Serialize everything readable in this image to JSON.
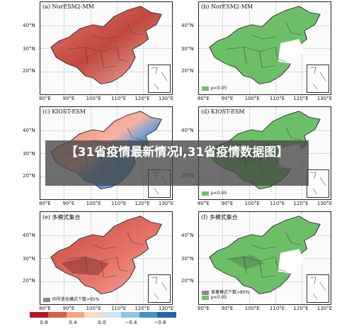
{
  "panels": [
    {
      "title": "(a) NorESM2-MM",
      "type": "correlation"
    },
    {
      "title": "(b) NorESM2-MM",
      "type": "significance",
      "legend": "p<0.05"
    },
    {
      "title": "(c) KIOST-ESM",
      "type": "correlation"
    },
    {
      "title": "(d) KIOST-ESM",
      "type": "significance",
      "legend": "p<0.05"
    },
    {
      "title": "(e) 多模式集合",
      "type": "correlation",
      "legend": "同号变化模式个数>95%"
    },
    {
      "title": "(f) 多模式集合",
      "type": "significance",
      "legend": "显著模式个数>80%",
      "legend2": "p<0.05"
    }
  ],
  "axes": {
    "y_labels": [
      "40°N",
      "30°N",
      "20°N"
    ],
    "x_labels": [
      "80°E",
      "90°E",
      "100°E",
      "110°E",
      "120°E",
      "130°E"
    ]
  },
  "colorbar": {
    "ticks": [
      "0.8",
      "0.4",
      "0.0",
      "−0.4",
      "−0.8"
    ],
    "colors": [
      "#b2182b",
      "#d6604d",
      "#f4a582",
      "#fddbc7",
      "#d1e5f0",
      "#92c5de",
      "#4393c3",
      "#2166ac"
    ]
  },
  "banner": {
    "text": "【31省疫情最新情况l,31省疫情数据图】"
  },
  "colors": {
    "green": "#6dbf67",
    "red_dark": "#c0483f",
    "red": "#e8766a",
    "red_light": "#f6b3a5",
    "blue": "#5b9bd5",
    "gray": "#8a8a8a"
  }
}
